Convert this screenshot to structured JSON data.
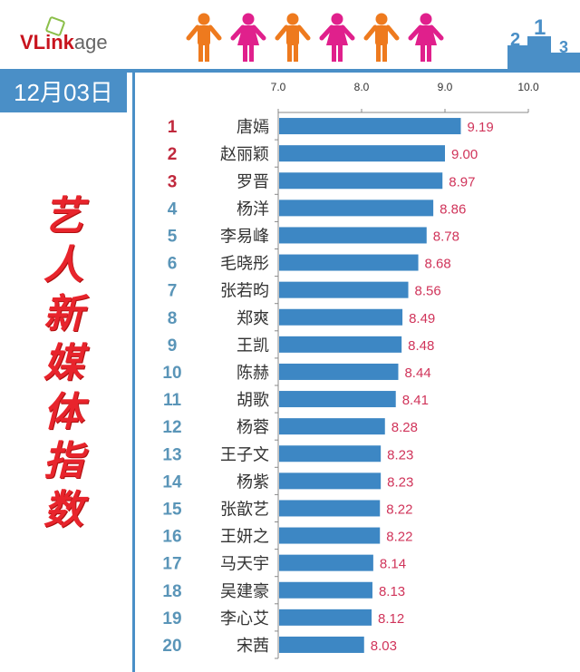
{
  "header": {
    "logo_text": "VLinkage",
    "logo_bold": "VLink",
    "logo_light": "age",
    "date": "12月03日",
    "vertical_title": "艺人新媒体指数",
    "people_icons": [
      "male",
      "female",
      "male",
      "female",
      "male",
      "female"
    ],
    "colors": {
      "male": "#ee7a1e",
      "female": "#e0208c",
      "accent": "#4a8fc7",
      "bar": "#3d87c4",
      "value": "#d0345a",
      "top_rank": "#c0283c",
      "rank": "#5a95b8"
    }
  },
  "chart_data": {
    "type": "bar",
    "orientation": "horizontal",
    "title": "艺人新媒体指数",
    "xlim": [
      7.0,
      10.0
    ],
    "xticks": [
      "7.0",
      "8.0",
      "9.0",
      "10.0"
    ],
    "ranks": [
      "1",
      "2",
      "3",
      "4",
      "5",
      "6",
      "7",
      "8",
      "9",
      "10",
      "11",
      "12",
      "13",
      "14",
      "15",
      "16",
      "17",
      "18",
      "19",
      "20"
    ],
    "categories": [
      "唐嫣",
      "赵丽颖",
      "罗晋",
      "杨洋",
      "李易峰",
      "毛晓彤",
      "张若昀",
      "郑爽",
      "王凯",
      "陈赫",
      "胡歌",
      "杨蓉",
      "王子文",
      "杨紫",
      "张歆艺",
      "王妍之",
      "马天宇",
      "吴建豪",
      "李心艾",
      "宋茜"
    ],
    "values": [
      9.19,
      9.0,
      8.97,
      8.86,
      8.78,
      8.68,
      8.56,
      8.49,
      8.48,
      8.44,
      8.41,
      8.28,
      8.23,
      8.23,
      8.22,
      8.22,
      8.14,
      8.13,
      8.12,
      8.03
    ],
    "value_labels": [
      "9.19",
      "9.00",
      "8.97",
      "8.86",
      "8.78",
      "8.68",
      "8.56",
      "8.49",
      "8.48",
      "8.44",
      "8.41",
      "8.28",
      "8.23",
      "8.23",
      "8.22",
      "8.22",
      "8.14",
      "8.13",
      "8.12",
      "8.03"
    ]
  }
}
